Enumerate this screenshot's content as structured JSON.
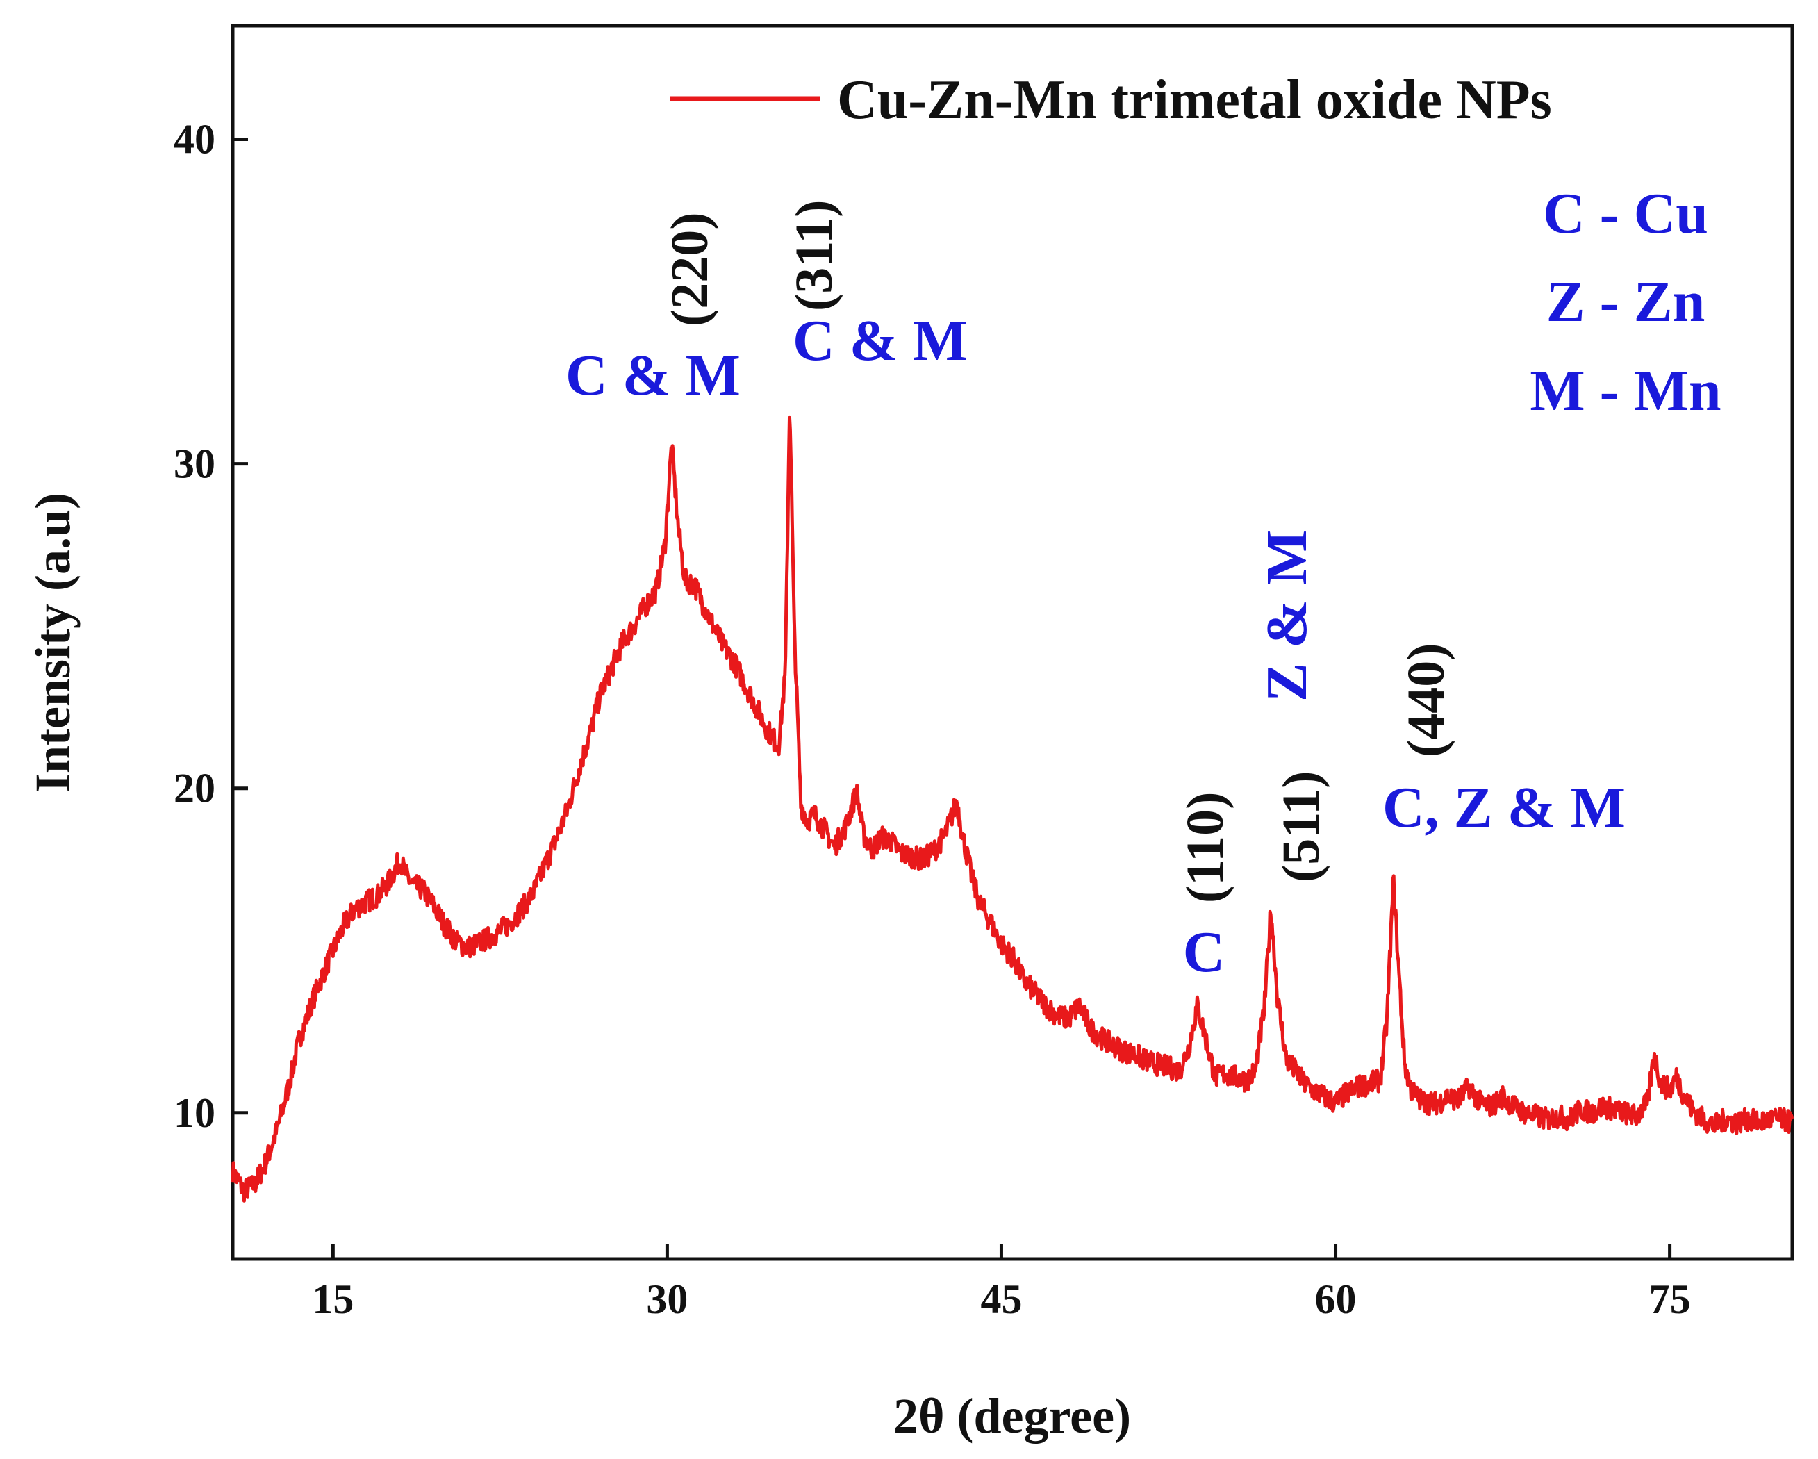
{
  "chart_data": {
    "type": "line",
    "title": "",
    "xlabel": "2θ (degree)",
    "ylabel": "Intensity (a.u)",
    "xlim": [
      10.5,
      80.5
    ],
    "ylim": [
      5.5,
      43.5
    ],
    "xticks": [
      15,
      30,
      45,
      60,
      75
    ],
    "yticks": [
      10,
      20,
      30,
      40
    ],
    "xtick_labels": [
      "15",
      "30",
      "45",
      "60",
      "75"
    ],
    "ytick_labels": [
      "10",
      "20",
      "30",
      "40"
    ],
    "series": [
      {
        "name": "Cu-Zn-Mn trimetal oxide NPs",
        "color": "#e8191b",
        "x": [
          10.5,
          11.0,
          11.5,
          12.0,
          12.5,
          13.0,
          13.5,
          14.0,
          14.5,
          15.0,
          15.5,
          16.0,
          16.5,
          17.0,
          17.5,
          18.0,
          18.3,
          18.6,
          19.0,
          19.5,
          20.0,
          20.5,
          21.0,
          21.5,
          22.0,
          22.5,
          23.0,
          23.5,
          24.0,
          24.5,
          25.0,
          25.5,
          26.0,
          26.5,
          27.0,
          27.5,
          28.0,
          28.5,
          29.0,
          29.5,
          29.9,
          30.2,
          30.5,
          30.8,
          31.2,
          31.6,
          32.0,
          32.5,
          33.0,
          33.5,
          34.0,
          34.5,
          35.0,
          35.3,
          35.5,
          35.7,
          36.0,
          36.3,
          36.6,
          37.0,
          37.5,
          38.0,
          38.5,
          38.8,
          39.2,
          39.6,
          40.0,
          40.5,
          41.0,
          41.5,
          42.0,
          42.5,
          43.0,
          43.3,
          43.7,
          44.0,
          44.5,
          45.0,
          45.5,
          46.0,
          46.5,
          47.0,
          47.5,
          48.0,
          48.5,
          49.0,
          49.5,
          50.0,
          50.5,
          51.0,
          51.5,
          52.0,
          52.5,
          53.0,
          53.4,
          53.8,
          54.2,
          54.6,
          55.0,
          55.5,
          56.0,
          56.4,
          56.8,
          57.1,
          57.4,
          57.8,
          58.2,
          58.6,
          59.0,
          59.5,
          60.0,
          60.5,
          61.0,
          61.5,
          62.0,
          62.3,
          62.6,
          62.8,
          63.1,
          63.4,
          63.8,
          64.2,
          64.6,
          65.0,
          65.5,
          66.0,
          66.5,
          67.0,
          67.5,
          68.0,
          68.5,
          69.0,
          69.5,
          70.0,
          70.5,
          71.0,
          71.5,
          72.0,
          72.5,
          73.0,
          73.5,
          74.0,
          74.3,
          74.6,
          75.0,
          75.3,
          75.6,
          76.0,
          76.5,
          77.0,
          77.5,
          78.0,
          78.5,
          79.0,
          79.5,
          80.0,
          80.5
        ],
        "y": [
          8.2,
          7.6,
          7.8,
          8.5,
          9.5,
          10.8,
          12.3,
          13.3,
          14.2,
          15.0,
          15.8,
          16.3,
          16.5,
          16.7,
          17.1,
          17.8,
          17.3,
          17.0,
          16.9,
          16.4,
          15.8,
          15.3,
          15.1,
          15.2,
          15.4,
          15.6,
          15.9,
          16.3,
          16.8,
          17.6,
          18.4,
          19.3,
          20.5,
          21.6,
          22.9,
          23.7,
          24.5,
          25.0,
          25.6,
          26.1,
          27.5,
          30.6,
          28.0,
          26.4,
          26.3,
          25.7,
          25.1,
          24.4,
          23.9,
          23.2,
          22.5,
          21.8,
          21.3,
          23.5,
          32.0,
          25.0,
          19.5,
          19.0,
          19.2,
          18.8,
          18.2,
          18.8,
          19.9,
          18.6,
          18.1,
          18.5,
          18.4,
          18.0,
          17.9,
          17.8,
          18.1,
          18.6,
          19.6,
          18.4,
          17.2,
          16.5,
          15.9,
          15.2,
          14.8,
          14.1,
          13.7,
          13.3,
          13.0,
          12.9,
          13.3,
          12.6,
          12.3,
          12.1,
          11.9,
          11.8,
          11.6,
          11.5,
          11.4,
          11.3,
          12.0,
          13.3,
          12.2,
          11.1,
          11.2,
          11.1,
          11.0,
          11.3,
          13.2,
          16.3,
          13.5,
          11.6,
          11.3,
          10.9,
          10.7,
          10.5,
          10.3,
          10.6,
          10.8,
          10.9,
          11.0,
          12.8,
          17.2,
          14.8,
          11.5,
          10.7,
          10.4,
          10.3,
          10.3,
          10.5,
          10.4,
          10.8,
          10.3,
          10.2,
          10.5,
          10.2,
          10.0,
          9.9,
          9.8,
          9.9,
          9.8,
          10.1,
          10.0,
          10.2,
          10.1,
          10.0,
          9.9,
          10.3,
          11.8,
          10.9,
          10.7,
          11.1,
          10.6,
          10.1,
          9.8,
          9.6,
          9.8,
          9.7,
          9.8,
          9.7,
          9.8,
          9.8,
          9.7
        ]
      }
    ],
    "peak_labels": [
      {
        "x": 30.2,
        "y": 30.6,
        "hkl": "(220)",
        "phase": "C & M"
      },
      {
        "x": 35.5,
        "y": 32.0,
        "hkl": "(311)",
        "phase": "C & M"
      },
      {
        "x": 53.8,
        "y": 13.3,
        "hkl": "(110)",
        "phase": "C"
      },
      {
        "x": 57.1,
        "y": 16.3,
        "hkl": "(511)",
        "phase": "Z & M"
      },
      {
        "x": 62.8,
        "y": 17.2,
        "hkl": "(440)",
        "phase": "C, Z & M"
      }
    ],
    "element_key": [
      "C - Cu",
      "Z - Zn",
      "M - Mn"
    ],
    "legend_position": "top-right"
  }
}
